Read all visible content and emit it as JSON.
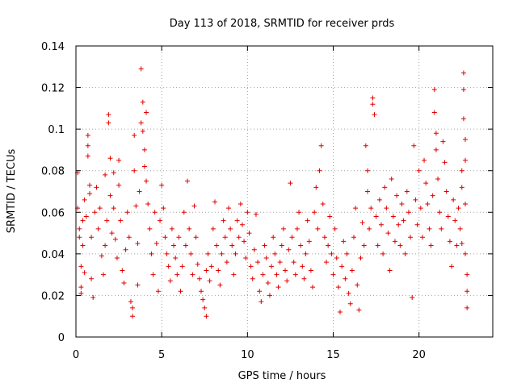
{
  "chart_data": {
    "type": "scatter",
    "title": "Day 113 of 2018, SRMTID for receiver prds",
    "xlabel": "GPS time / hours",
    "ylabel": "SRMTID / TECUs",
    "xlim": [
      0,
      24.3
    ],
    "ylim": [
      0,
      0.14
    ],
    "xticks": [
      0,
      5,
      10,
      15,
      20
    ],
    "xtick_labels": [
      "0",
      "5",
      "10",
      "15",
      "20"
    ],
    "yticks": [
      0,
      0.02,
      0.04,
      0.06,
      0.08,
      0.1,
      0.12,
      0.14
    ],
    "ytick_labels": [
      "0",
      "0.02",
      "0.04",
      "0.06",
      "0.08",
      "0.1",
      "0.12",
      "0.14"
    ],
    "grid": true,
    "marker": "+",
    "color": "#e00000",
    "series": [
      {
        "name": "SRMTID",
        "points": [
          [
            0.1,
            0.079
          ],
          [
            0.1,
            0.062
          ],
          [
            0.2,
            0.052
          ],
          [
            0.2,
            0.048
          ],
          [
            0.3,
            0.034
          ],
          [
            0.3,
            0.024
          ],
          [
            0.3,
            0.021
          ],
          [
            0.4,
            0.056
          ],
          [
            0.4,
            0.044
          ],
          [
            0.5,
            0.031
          ],
          [
            0.5,
            0.066
          ],
          [
            0.6,
            0.058
          ],
          [
            0.7,
            0.097
          ],
          [
            0.7,
            0.092
          ],
          [
            0.7,
            0.087
          ],
          [
            0.8,
            0.073
          ],
          [
            0.8,
            0.069
          ],
          [
            0.9,
            0.048
          ],
          [
            0.9,
            0.028
          ],
          [
            1.0,
            0.019
          ],
          [
            1.1,
            0.06
          ],
          [
            1.2,
            0.072
          ],
          [
            1.3,
            0.052
          ],
          [
            1.4,
            0.062
          ],
          [
            1.5,
            0.039
          ],
          [
            1.6,
            0.03
          ],
          [
            1.7,
            0.078
          ],
          [
            1.7,
            0.044
          ],
          [
            1.8,
            0.056
          ],
          [
            1.9,
            0.107
          ],
          [
            1.9,
            0.103
          ],
          [
            2.0,
            0.086
          ],
          [
            2.0,
            0.068
          ],
          [
            2.1,
            0.05
          ],
          [
            2.2,
            0.079
          ],
          [
            2.2,
            0.062
          ],
          [
            2.3,
            0.047
          ],
          [
            2.4,
            0.038
          ],
          [
            2.5,
            0.085
          ],
          [
            2.5,
            0.073
          ],
          [
            2.6,
            0.056
          ],
          [
            2.7,
            0.032
          ],
          [
            2.8,
            0.026
          ],
          [
            2.9,
            0.042
          ],
          [
            3.0,
            0.06
          ],
          [
            3.1,
            0.048
          ],
          [
            3.2,
            0.017
          ],
          [
            3.3,
            0.014
          ],
          [
            3.3,
            0.01
          ],
          [
            3.4,
            0.097
          ],
          [
            3.4,
            0.08
          ],
          [
            3.5,
            0.063
          ],
          [
            3.6,
            0.045
          ],
          [
            3.6,
            0.025
          ],
          [
            3.7,
            0.07
          ],
          [
            3.8,
            0.129
          ],
          [
            3.8,
            0.103
          ],
          [
            3.9,
            0.113
          ],
          [
            3.9,
            0.099
          ],
          [
            4.0,
            0.09
          ],
          [
            4.0,
            0.082
          ],
          [
            4.1,
            0.108
          ],
          [
            4.1,
            0.075
          ],
          [
            4.2,
            0.064
          ],
          [
            4.3,
            0.052
          ],
          [
            4.4,
            0.04
          ],
          [
            4.5,
            0.03
          ],
          [
            4.6,
            0.06
          ],
          [
            4.7,
            0.045
          ],
          [
            4.8,
            0.022
          ],
          [
            4.9,
            0.056
          ],
          [
            5.0,
            0.073
          ],
          [
            5.1,
            0.062
          ],
          [
            5.2,
            0.048
          ],
          [
            5.3,
            0.04
          ],
          [
            5.4,
            0.034
          ],
          [
            5.5,
            0.027
          ],
          [
            5.6,
            0.052
          ],
          [
            5.7,
            0.044
          ],
          [
            5.8,
            0.038
          ],
          [
            5.9,
            0.03
          ],
          [
            6.0,
            0.048
          ],
          [
            6.1,
            0.022
          ],
          [
            6.2,
            0.034
          ],
          [
            6.3,
            0.06
          ],
          [
            6.4,
            0.044
          ],
          [
            6.5,
            0.075
          ],
          [
            6.6,
            0.052
          ],
          [
            6.7,
            0.04
          ],
          [
            6.8,
            0.03
          ],
          [
            6.9,
            0.063
          ],
          [
            7.0,
            0.048
          ],
          [
            7.1,
            0.035
          ],
          [
            7.2,
            0.028
          ],
          [
            7.3,
            0.022
          ],
          [
            7.4,
            0.018
          ],
          [
            7.5,
            0.014
          ],
          [
            7.6,
            0.01
          ],
          [
            7.6,
            0.032
          ],
          [
            7.7,
            0.04
          ],
          [
            7.8,
            0.027
          ],
          [
            7.9,
            0.034
          ],
          [
            8.0,
            0.052
          ],
          [
            8.1,
            0.065
          ],
          [
            8.2,
            0.044
          ],
          [
            8.3,
            0.032
          ],
          [
            8.4,
            0.025
          ],
          [
            8.5,
            0.04
          ],
          [
            8.6,
            0.056
          ],
          [
            8.7,
            0.048
          ],
          [
            8.8,
            0.036
          ],
          [
            8.9,
            0.062
          ],
          [
            9.0,
            0.052
          ],
          [
            9.1,
            0.044
          ],
          [
            9.2,
            0.03
          ],
          [
            9.3,
            0.04
          ],
          [
            9.4,
            0.056
          ],
          [
            9.5,
            0.048
          ],
          [
            9.6,
            0.064
          ],
          [
            9.7,
            0.054
          ],
          [
            9.8,
            0.046
          ],
          [
            9.9,
            0.038
          ],
          [
            10.0,
            0.06
          ],
          [
            10.1,
            0.05
          ],
          [
            10.2,
            0.034
          ],
          [
            10.3,
            0.028
          ],
          [
            10.4,
            0.042
          ],
          [
            10.5,
            0.059
          ],
          [
            10.6,
            0.036
          ],
          [
            10.7,
            0.022
          ],
          [
            10.8,
            0.017
          ],
          [
            10.9,
            0.03
          ],
          [
            11.0,
            0.044
          ],
          [
            11.1,
            0.038
          ],
          [
            11.2,
            0.026
          ],
          [
            11.3,
            0.02
          ],
          [
            11.4,
            0.034
          ],
          [
            11.5,
            0.048
          ],
          [
            11.6,
            0.04
          ],
          [
            11.7,
            0.03
          ],
          [
            11.8,
            0.024
          ],
          [
            11.9,
            0.036
          ],
          [
            12.0,
            0.044
          ],
          [
            12.1,
            0.052
          ],
          [
            12.2,
            0.032
          ],
          [
            12.3,
            0.027
          ],
          [
            12.4,
            0.042
          ],
          [
            12.5,
            0.074
          ],
          [
            12.6,
            0.048
          ],
          [
            12.7,
            0.036
          ],
          [
            12.8,
            0.03
          ],
          [
            12.9,
            0.052
          ],
          [
            13.0,
            0.06
          ],
          [
            13.1,
            0.044
          ],
          [
            13.2,
            0.034
          ],
          [
            13.3,
            0.028
          ],
          [
            13.4,
            0.04
          ],
          [
            13.5,
            0.056
          ],
          [
            13.6,
            0.046
          ],
          [
            13.7,
            0.032
          ],
          [
            13.8,
            0.024
          ],
          [
            13.9,
            0.06
          ],
          [
            14.0,
            0.072
          ],
          [
            14.1,
            0.052
          ],
          [
            14.2,
            0.08
          ],
          [
            14.3,
            0.092
          ],
          [
            14.4,
            0.064
          ],
          [
            14.5,
            0.048
          ],
          [
            14.6,
            0.036
          ],
          [
            14.7,
            0.044
          ],
          [
            14.8,
            0.058
          ],
          [
            14.9,
            0.04
          ],
          [
            15.0,
            0.03
          ],
          [
            15.1,
            0.052
          ],
          [
            15.2,
            0.038
          ],
          [
            15.3,
            0.024
          ],
          [
            15.4,
            0.012
          ],
          [
            15.5,
            0.034
          ],
          [
            15.6,
            0.046
          ],
          [
            15.7,
            0.028
          ],
          [
            15.8,
            0.04
          ],
          [
            15.9,
            0.021
          ],
          [
            16.0,
            0.016
          ],
          [
            16.1,
            0.032
          ],
          [
            16.2,
            0.048
          ],
          [
            16.3,
            0.062
          ],
          [
            16.4,
            0.025
          ],
          [
            16.5,
            0.013
          ],
          [
            16.6,
            0.038
          ],
          [
            16.7,
            0.055
          ],
          [
            16.8,
            0.044
          ],
          [
            16.9,
            0.092
          ],
          [
            17.0,
            0.08
          ],
          [
            17.0,
            0.07
          ],
          [
            17.1,
            0.052
          ],
          [
            17.2,
            0.062
          ],
          [
            17.3,
            0.115
          ],
          [
            17.3,
            0.112
          ],
          [
            17.4,
            0.107
          ],
          [
            17.5,
            0.058
          ],
          [
            17.6,
            0.044
          ],
          [
            17.7,
            0.066
          ],
          [
            17.8,
            0.054
          ],
          [
            17.9,
            0.04
          ],
          [
            18.0,
            0.072
          ],
          [
            18.1,
            0.062
          ],
          [
            18.2,
            0.05
          ],
          [
            18.3,
            0.032
          ],
          [
            18.4,
            0.076
          ],
          [
            18.5,
            0.058
          ],
          [
            18.6,
            0.046
          ],
          [
            18.7,
            0.068
          ],
          [
            18.8,
            0.054
          ],
          [
            18.9,
            0.044
          ],
          [
            19.0,
            0.064
          ],
          [
            19.1,
            0.056
          ],
          [
            19.2,
            0.04
          ],
          [
            19.3,
            0.07
          ],
          [
            19.4,
            0.06
          ],
          [
            19.5,
            0.048
          ],
          [
            19.6,
            0.019
          ],
          [
            19.7,
            0.092
          ],
          [
            19.8,
            0.066
          ],
          [
            19.9,
            0.054
          ],
          [
            20.0,
            0.08
          ],
          [
            20.1,
            0.062
          ],
          [
            20.2,
            0.048
          ],
          [
            20.3,
            0.085
          ],
          [
            20.4,
            0.074
          ],
          [
            20.5,
            0.064
          ],
          [
            20.6,
            0.052
          ],
          [
            20.7,
            0.044
          ],
          [
            20.8,
            0.068
          ],
          [
            20.9,
            0.119
          ],
          [
            20.9,
            0.108
          ],
          [
            21.0,
            0.098
          ],
          [
            21.0,
            0.09
          ],
          [
            21.1,
            0.076
          ],
          [
            21.2,
            0.06
          ],
          [
            21.3,
            0.052
          ],
          [
            21.4,
            0.094
          ],
          [
            21.5,
            0.084
          ],
          [
            21.6,
            0.07
          ],
          [
            21.7,
            0.058
          ],
          [
            21.8,
            0.046
          ],
          [
            21.9,
            0.034
          ],
          [
            22.0,
            0.066
          ],
          [
            22.1,
            0.056
          ],
          [
            22.2,
            0.044
          ],
          [
            22.3,
            0.062
          ],
          [
            22.4,
            0.052
          ],
          [
            22.5,
            0.08
          ],
          [
            22.5,
            0.072
          ],
          [
            22.5,
            0.045
          ],
          [
            22.6,
            0.127
          ],
          [
            22.6,
            0.119
          ],
          [
            22.6,
            0.105
          ],
          [
            22.7,
            0.095
          ],
          [
            22.7,
            0.085
          ],
          [
            22.7,
            0.064
          ],
          [
            22.7,
            0.04
          ],
          [
            22.8,
            0.03
          ],
          [
            22.8,
            0.022
          ],
          [
            22.8,
            0.014
          ]
        ]
      }
    ]
  }
}
